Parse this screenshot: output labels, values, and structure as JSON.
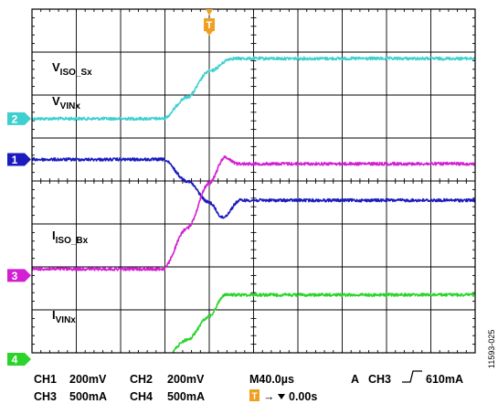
{
  "chart_data": {
    "type": "line",
    "title": "",
    "xlabel": "",
    "ylabel": "",
    "x_unit": "µs",
    "x_per_division": 40.0,
    "x_divisions": 10,
    "xlim": [
      -160,
      240
    ],
    "trigger_time": 0.0,
    "grid": true,
    "series": [
      {
        "name": "VISO_Sx",
        "label_main": "V",
        "label_sub": "ISO_Sx",
        "channel": "2",
        "color": "#3fcfcf",
        "volts_per_div": "200mV",
        "x": [
          -160,
          -42,
          -20,
          0,
          20,
          240
        ],
        "y": [
          -2.55,
          -2.55,
          -2.05,
          -1.45,
          -1.15,
          -1.15
        ]
      },
      {
        "name": "VVINx",
        "label_main": "V",
        "label_sub": "VINx",
        "channel": "1",
        "color": "#1b1bbf",
        "volts_per_div": "200mV",
        "x": [
          -160,
          -42,
          -20,
          0,
          12,
          28,
          240
        ],
        "y": [
          -3.5,
          -3.5,
          -4.0,
          -4.5,
          -4.85,
          -4.45,
          -4.45
        ]
      },
      {
        "name": "IISO_Bx",
        "label_main": "I",
        "label_sub": "ISO_Bx",
        "channel": "3",
        "color": "#d21fd2",
        "amps_per_div": "500mA",
        "x": [
          -160,
          -42,
          -20,
          0,
          14,
          26,
          240
        ],
        "y": [
          -6.05,
          -6.05,
          -5.1,
          -4.05,
          -3.45,
          -3.6,
          -3.6
        ]
      },
      {
        "name": "IVINx",
        "label_main": "I",
        "label_sub": "VINx",
        "channel": "4",
        "color": "#2ad42a",
        "amps_per_div": "500mA",
        "x": [
          -160,
          -42,
          -20,
          0,
          14,
          26,
          240
        ],
        "y": [
          -8.15,
          -8.15,
          -7.7,
          -7.15,
          -6.65,
          -6.65,
          -6.65
        ]
      }
    ],
    "markers": [
      {
        "label": "2",
        "color": "#3fcfcf",
        "y": -2.55
      },
      {
        "label": "1",
        "color": "#1b1bbf",
        "y": -3.5
      },
      {
        "label": "3",
        "color": "#d21fd2",
        "y": -6.2
      },
      {
        "label": "4",
        "color": "#2ad42a",
        "y": -8.15
      }
    ],
    "trigger_marker": {
      "label": "T",
      "color": "#f0a020"
    }
  },
  "status": {
    "ch1": "CH1",
    "ch1_scale": "200mV",
    "ch2": "CH2",
    "ch2_scale": "200mV",
    "ch3": "CH3",
    "ch3_scale": "500mA",
    "ch4": "CH4",
    "ch4_scale": "500mA",
    "timebase": "M40.0µs",
    "trigger_mode": "A",
    "trigger_source": "CH3",
    "trigger_level": "610mA",
    "trigger_icon": "T",
    "trigger_offset": "0.00s"
  },
  "figure_id": "11593-025"
}
